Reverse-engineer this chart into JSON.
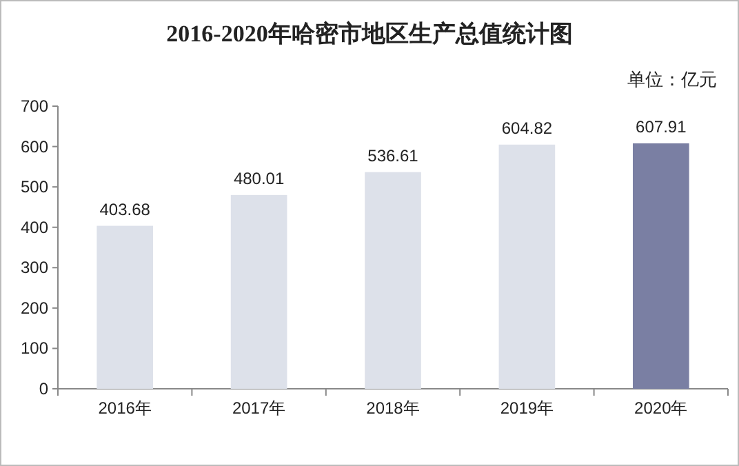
{
  "chart_data": {
    "type": "bar",
    "title": "2016-2020年哈密市地区生产总值统计图",
    "annotations": [
      "单位：亿元"
    ],
    "categories": [
      "2016年",
      "2017年",
      "2018年",
      "2019年",
      "2020年"
    ],
    "values": [
      403.68,
      480.01,
      536.61,
      604.82,
      607.91
    ],
    "colors": [
      "#dde1ea",
      "#dde1ea",
      "#dde1ea",
      "#dde1ea",
      "#7a7fa3"
    ],
    "ylim": [
      0,
      700
    ],
    "yticks": [
      0,
      100,
      200,
      300,
      400,
      500,
      600,
      700
    ],
    "data_labels": true
  }
}
